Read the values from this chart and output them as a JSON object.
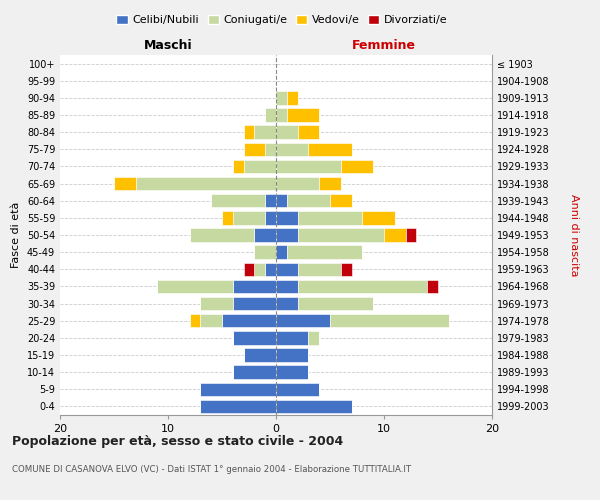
{
  "age_groups": [
    "0-4",
    "5-9",
    "10-14",
    "15-19",
    "20-24",
    "25-29",
    "30-34",
    "35-39",
    "40-44",
    "45-49",
    "50-54",
    "55-59",
    "60-64",
    "65-69",
    "70-74",
    "75-79",
    "80-84",
    "85-89",
    "90-94",
    "95-99",
    "100+"
  ],
  "birth_years": [
    "1999-2003",
    "1994-1998",
    "1989-1993",
    "1984-1988",
    "1979-1983",
    "1974-1978",
    "1969-1973",
    "1964-1968",
    "1959-1963",
    "1954-1958",
    "1949-1953",
    "1944-1948",
    "1939-1943",
    "1934-1938",
    "1929-1933",
    "1924-1928",
    "1919-1923",
    "1914-1918",
    "1909-1913",
    "1904-1908",
    "≤ 1903"
  ],
  "colors": {
    "celibi": "#4472c4",
    "coniugati": "#c5d9a0",
    "vedovi": "#ffc000",
    "divorziati": "#c0000b"
  },
  "maschi": {
    "celibi": [
      7,
      7,
      4,
      3,
      4,
      5,
      4,
      4,
      1,
      0,
      2,
      1,
      1,
      0,
      0,
      0,
      0,
      0,
      0,
      0,
      0
    ],
    "coniugati": [
      0,
      0,
      0,
      0,
      0,
      2,
      3,
      7,
      1,
      2,
      6,
      3,
      5,
      13,
      3,
      1,
      2,
      1,
      0,
      0,
      0
    ],
    "vedovi": [
      0,
      0,
      0,
      0,
      0,
      1,
      0,
      0,
      0,
      0,
      0,
      1,
      0,
      2,
      1,
      2,
      1,
      0,
      0,
      0,
      0
    ],
    "divorziati": [
      0,
      0,
      0,
      0,
      0,
      0,
      0,
      0,
      1,
      0,
      0,
      0,
      0,
      0,
      0,
      0,
      0,
      0,
      0,
      0,
      0
    ]
  },
  "femmine": {
    "celibi": [
      7,
      4,
      3,
      3,
      3,
      5,
      2,
      2,
      2,
      1,
      2,
      2,
      1,
      0,
      0,
      0,
      0,
      0,
      0,
      0,
      0
    ],
    "coniugati": [
      0,
      0,
      0,
      0,
      1,
      11,
      7,
      12,
      4,
      7,
      8,
      6,
      4,
      4,
      6,
      3,
      2,
      1,
      1,
      0,
      0
    ],
    "vedovi": [
      0,
      0,
      0,
      0,
      0,
      0,
      0,
      0,
      0,
      0,
      2,
      3,
      2,
      2,
      3,
      4,
      2,
      3,
      1,
      0,
      0
    ],
    "divorziati": [
      0,
      0,
      0,
      0,
      0,
      0,
      0,
      1,
      1,
      0,
      1,
      0,
      0,
      0,
      0,
      0,
      0,
      0,
      0,
      0,
      0
    ]
  },
  "title": "Popolazione per età, sesso e stato civile - 2004",
  "subtitle": "COMUNE DI CASANOVA ELVO (VC) - Dati ISTAT 1° gennaio 2004 - Elaborazione TUTTITALIA.IT",
  "xlabel_left": "Maschi",
  "xlabel_right": "Femmine",
  "ylabel_left": "Fasce di età",
  "ylabel_right": "Anni di nascita",
  "xlim": 20,
  "legend_labels": [
    "Celibi/Nubili",
    "Coniugati/e",
    "Vedovi/e",
    "Divorziati/e"
  ],
  "bg_color": "#f0f0f0",
  "plot_bg_color": "#ffffff"
}
